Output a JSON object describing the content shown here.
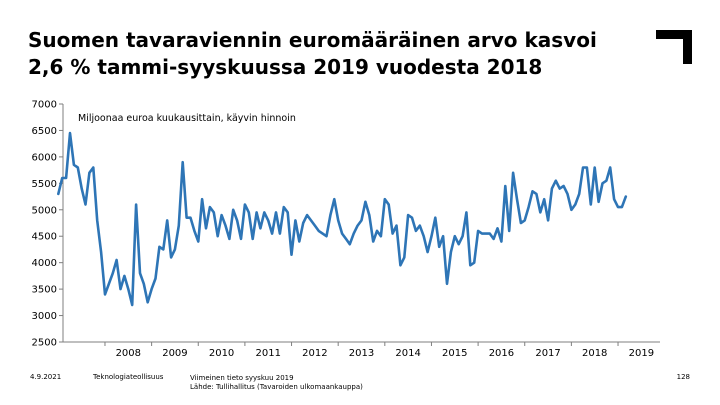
{
  "header": {
    "title_line1": "Suomen tavaraviennin euromääräinen arvo kasvoi",
    "title_line2": "2,6 % tammi-syyskuussa 2019 vuodesta 2018"
  },
  "footer": {
    "date": "4.9.2021",
    "org": "Teknologiateollisuus",
    "note_line1": "Viimeinen tieto syyskuu 2019",
    "note_line2": "Lähde: Tullihallitus (Tavaroiden ulkomaankauppa)",
    "page_number": "128"
  },
  "chart_data": {
    "type": "line",
    "subtitle": "Miljoonaa euroa kuukausittain, käyvin hinnoin",
    "ylim": [
      2500,
      7000
    ],
    "y_ticks": [
      2500,
      3000,
      3500,
      4000,
      4500,
      5000,
      5500,
      6000,
      6500,
      7000
    ],
    "x_start": 2007.0,
    "x_ticks": [
      "2008",
      "2009",
      "2010",
      "2011",
      "2012",
      "2013",
      "2014",
      "2015",
      "2016",
      "2017",
      "2018",
      "2019"
    ],
    "grid": false,
    "series_color": "#2e75b6",
    "series": [
      {
        "values": [
          5300,
          5600,
          5600,
          6450,
          5850,
          5800,
          5400,
          5100,
          5700,
          5800,
          4800,
          4200,
          3400,
          3600,
          3800,
          4050,
          3500,
          3750,
          3500,
          3200,
          5100,
          3800,
          3600,
          3250,
          3500,
          3700,
          4300,
          4250,
          4800,
          4100,
          4250,
          4700,
          5900,
          4850,
          4850,
          4600,
          4400,
          5200,
          4650,
          5050,
          4950,
          4500,
          4900,
          4700,
          4450,
          5000,
          4800,
          4450,
          5100,
          4950,
          4450,
          4950,
          4650,
          4950,
          4800,
          4550,
          4950,
          4550,
          5050,
          4950,
          4150,
          4800,
          4400,
          4750,
          4900,
          4800,
          4700,
          4600,
          4550,
          4500,
          4900,
          5200,
          4800,
          4550,
          4450,
          4350,
          4550,
          4700,
          4800,
          5150,
          4900,
          4400,
          4600,
          4500,
          5200,
          5100,
          4550,
          4700,
          3950,
          4100,
          4900,
          4850,
          4600,
          4700,
          4500,
          4200,
          4500,
          4850,
          4300,
          4500,
          3600,
          4200,
          4500,
          4350,
          4500,
          4950,
          3950,
          4000,
          4600,
          4550,
          4550,
          4550,
          4450,
          4650,
          4400,
          5450,
          4600,
          5700,
          5200,
          4750,
          4800,
          5050,
          5350,
          5300,
          4950,
          5200,
          4800,
          5400,
          5550,
          5400,
          5450,
          5300,
          5000,
          5100,
          5300,
          5800,
          5800,
          5100,
          5800,
          5150,
          5500,
          5550,
          5800,
          5200,
          5050,
          5050,
          5250
        ]
      }
    ]
  }
}
